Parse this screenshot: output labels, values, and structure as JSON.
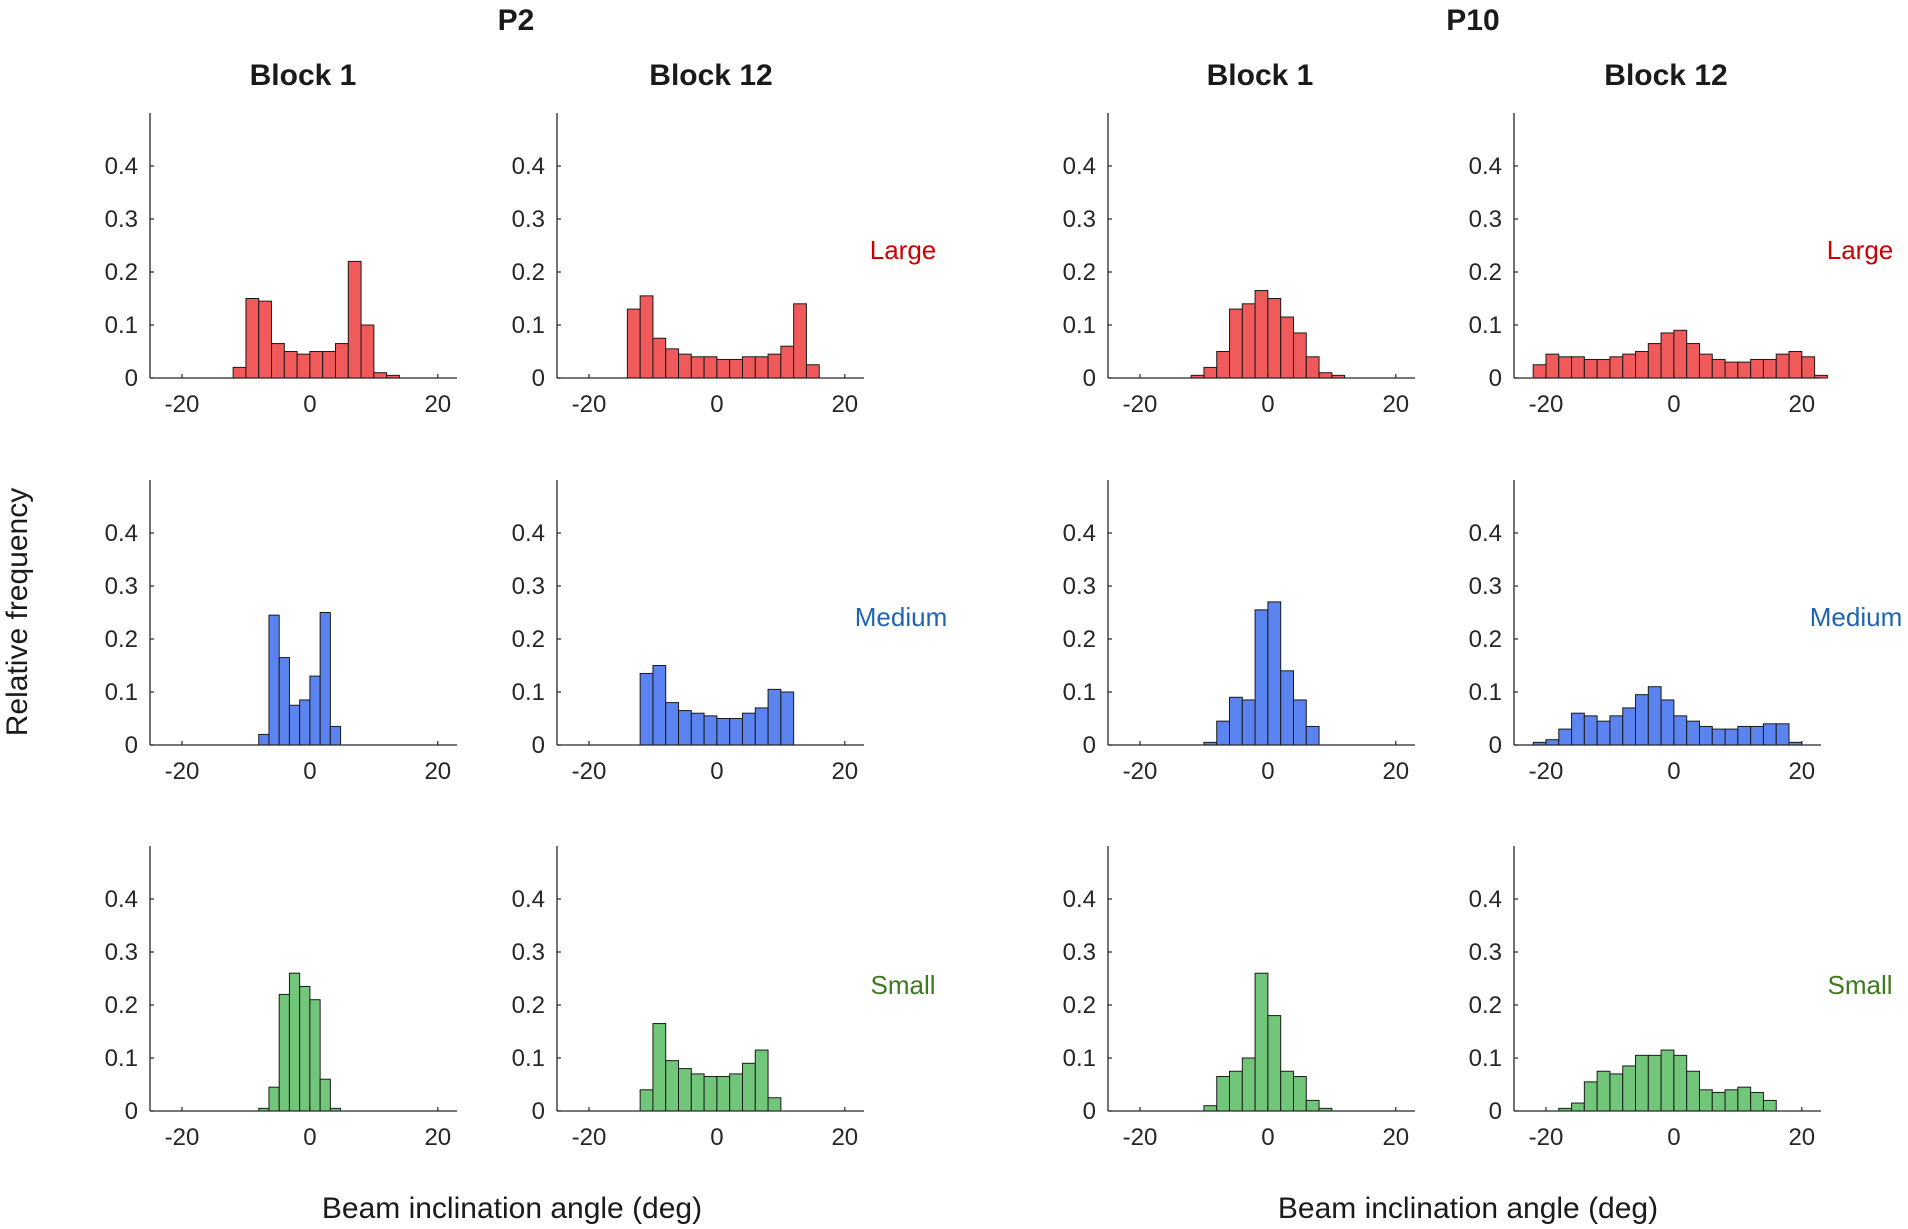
{
  "groups": [
    {
      "title": "P2",
      "xlabel": "Beam inclination angle (deg)"
    },
    {
      "title": "P10",
      "xlabel": "Beam inclination angle (deg)"
    }
  ],
  "columns": [
    "Block 1",
    "Block 12",
    "Block 1",
    "Block 12"
  ],
  "rows": [
    {
      "label": "Large",
      "color": "#cc0000",
      "bar_color": "#f05a5a"
    },
    {
      "label": "Medium",
      "color": "#1f64b4",
      "bar_color": "#5b84f0"
    },
    {
      "label": "Small",
      "color": "#3c7a1e",
      "bar_color": "#72c67a"
    }
  ],
  "ylabel": "Relative frequency",
  "chart_data": {
    "type": "bar",
    "xlim": [
      -25,
      23
    ],
    "ylim": [
      0,
      0.5
    ],
    "xticks": [
      -20,
      0,
      20
    ],
    "xtick_labels": [
      "-20",
      "0",
      "20"
    ],
    "yticks": [
      0,
      0.1,
      0.2,
      0.3,
      0.4
    ],
    "ytick_labels": [
      "0",
      "0.1",
      "0.2",
      "0.3",
      "0.4"
    ],
    "panels": [
      {
        "group": "P2",
        "block": "Block 1",
        "size": "Large",
        "bin_start": -12,
        "bin_width": 2,
        "values": [
          0.02,
          0.15,
          0.145,
          0.065,
          0.05,
          0.045,
          0.05,
          0.05,
          0.065,
          0.22,
          0.1,
          0.01,
          0.005
        ]
      },
      {
        "group": "P2",
        "block": "Block 12",
        "size": "Large",
        "bin_start": -14,
        "bin_width": 2,
        "values": [
          0.13,
          0.155,
          0.075,
          0.055,
          0.045,
          0.04,
          0.04,
          0.035,
          0.035,
          0.04,
          0.04,
          0.045,
          0.06,
          0.14,
          0.025
        ]
      },
      {
        "group": "P10",
        "block": "Block 1",
        "size": "Large",
        "bin_start": -12,
        "bin_width": 2,
        "values": [
          0.005,
          0.02,
          0.05,
          0.13,
          0.14,
          0.165,
          0.15,
          0.115,
          0.085,
          0.04,
          0.01,
          0.005
        ]
      },
      {
        "group": "P10",
        "block": "Block 12",
        "size": "Large",
        "bin_start": -22,
        "bin_width": 2,
        "values": [
          0.025,
          0.045,
          0.04,
          0.04,
          0.035,
          0.035,
          0.04,
          0.045,
          0.05,
          0.065,
          0.085,
          0.09,
          0.065,
          0.045,
          0.035,
          0.03,
          0.03,
          0.035,
          0.035,
          0.045,
          0.05,
          0.04,
          0.005
        ]
      },
      {
        "group": "P2",
        "block": "Block 1",
        "size": "Medium",
        "bin_start": -8,
        "bin_width": 1.6,
        "values": [
          0.02,
          0.245,
          0.165,
          0.075,
          0.085,
          0.13,
          0.25,
          0.035
        ]
      },
      {
        "group": "P2",
        "block": "Block 12",
        "size": "Medium",
        "bin_start": -12,
        "bin_width": 2,
        "values": [
          0.135,
          0.15,
          0.08,
          0.065,
          0.06,
          0.055,
          0.05,
          0.05,
          0.06,
          0.07,
          0.105,
          0.1
        ]
      },
      {
        "group": "P10",
        "block": "Block 1",
        "size": "Medium",
        "bin_start": -10,
        "bin_width": 2,
        "values": [
          0.005,
          0.045,
          0.09,
          0.085,
          0.255,
          0.27,
          0.14,
          0.085,
          0.035
        ]
      },
      {
        "group": "P10",
        "block": "Block 12",
        "size": "Medium",
        "bin_start": -22,
        "bin_width": 2,
        "values": [
          0.005,
          0.01,
          0.03,
          0.06,
          0.055,
          0.045,
          0.055,
          0.07,
          0.095,
          0.11,
          0.085,
          0.055,
          0.045,
          0.035,
          0.03,
          0.03,
          0.035,
          0.035,
          0.04,
          0.04,
          0.005
        ]
      },
      {
        "group": "P2",
        "block": "Block 1",
        "size": "Small",
        "bin_start": -8,
        "bin_width": 1.6,
        "values": [
          0.005,
          0.045,
          0.22,
          0.26,
          0.235,
          0.21,
          0.06,
          0.005
        ]
      },
      {
        "group": "P2",
        "block": "Block 12",
        "size": "Small",
        "bin_start": -12,
        "bin_width": 2,
        "values": [
          0.04,
          0.165,
          0.095,
          0.08,
          0.07,
          0.065,
          0.065,
          0.07,
          0.09,
          0.115,
          0.025
        ]
      },
      {
        "group": "P10",
        "block": "Block 1",
        "size": "Small",
        "bin_start": -10,
        "bin_width": 2,
        "values": [
          0.01,
          0.065,
          0.075,
          0.1,
          0.26,
          0.18,
          0.075,
          0.065,
          0.02,
          0.005
        ]
      },
      {
        "group": "P10",
        "block": "Block 12",
        "size": "Small",
        "bin_start": -18,
        "bin_width": 2,
        "values": [
          0.005,
          0.015,
          0.055,
          0.075,
          0.07,
          0.085,
          0.105,
          0.105,
          0.115,
          0.105,
          0.075,
          0.04,
          0.035,
          0.04,
          0.045,
          0.035,
          0.02
        ]
      }
    ]
  }
}
